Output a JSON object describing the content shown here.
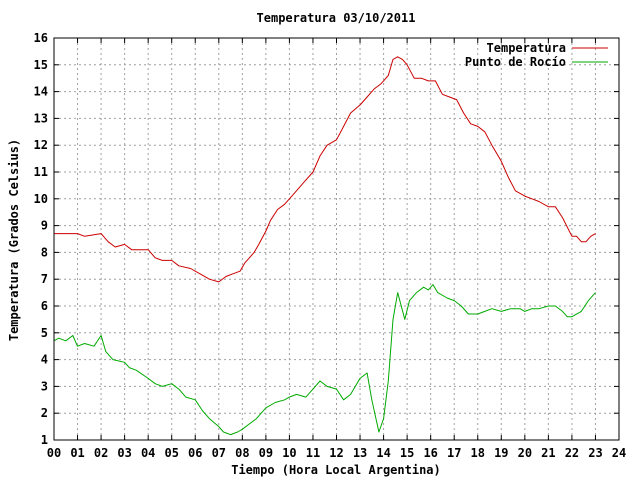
{
  "chart_data": {
    "type": "line",
    "title": "Temperatura 03/10/2011",
    "xlabel": "Tiempo (Hora Local Argentina)",
    "ylabel": "Temperatura (Grados Celsius)",
    "xlim": [
      0,
      24
    ],
    "ylim": [
      1,
      16
    ],
    "x_ticks": [
      "00",
      "01",
      "02",
      "03",
      "04",
      "05",
      "06",
      "07",
      "08",
      "09",
      "10",
      "11",
      "12",
      "13",
      "14",
      "15",
      "16",
      "17",
      "18",
      "19",
      "20",
      "21",
      "22",
      "23",
      "24"
    ],
    "y_ticks": [
      "1",
      "2",
      "3",
      "4",
      "5",
      "6",
      "7",
      "8",
      "9",
      "10",
      "11",
      "12",
      "13",
      "14",
      "15",
      "16"
    ],
    "grid": true,
    "legend_position": "top-right",
    "series": [
      {
        "name": "Temperatura",
        "color": "#cc0000",
        "points": [
          [
            0.0,
            8.7
          ],
          [
            0.5,
            8.7
          ],
          [
            1.0,
            8.7
          ],
          [
            1.3,
            8.6
          ],
          [
            2.0,
            8.7
          ],
          [
            2.3,
            8.4
          ],
          [
            2.6,
            8.2
          ],
          [
            3.0,
            8.3
          ],
          [
            3.3,
            8.1
          ],
          [
            4.0,
            8.1
          ],
          [
            4.3,
            7.8
          ],
          [
            4.6,
            7.7
          ],
          [
            5.0,
            7.7
          ],
          [
            5.3,
            7.5
          ],
          [
            5.8,
            7.4
          ],
          [
            6.2,
            7.2
          ],
          [
            6.6,
            7.0
          ],
          [
            7.0,
            6.9
          ],
          [
            7.3,
            7.1
          ],
          [
            7.6,
            7.2
          ],
          [
            7.9,
            7.3
          ],
          [
            8.1,
            7.6
          ],
          [
            8.3,
            7.8
          ],
          [
            8.5,
            8.0
          ],
          [
            8.7,
            8.3
          ],
          [
            9.0,
            8.8
          ],
          [
            9.2,
            9.2
          ],
          [
            9.5,
            9.6
          ],
          [
            9.8,
            9.8
          ],
          [
            10.0,
            10.0
          ],
          [
            10.3,
            10.3
          ],
          [
            10.6,
            10.6
          ],
          [
            11.0,
            11.0
          ],
          [
            11.3,
            11.6
          ],
          [
            11.6,
            12.0
          ],
          [
            12.0,
            12.2
          ],
          [
            12.3,
            12.7
          ],
          [
            12.6,
            13.2
          ],
          [
            13.0,
            13.5
          ],
          [
            13.3,
            13.8
          ],
          [
            13.6,
            14.1
          ],
          [
            13.9,
            14.3
          ],
          [
            14.2,
            14.6
          ],
          [
            14.4,
            15.2
          ],
          [
            14.6,
            15.3
          ],
          [
            14.8,
            15.2
          ],
          [
            15.0,
            15.0
          ],
          [
            15.3,
            14.5
          ],
          [
            15.6,
            14.5
          ],
          [
            15.9,
            14.4
          ],
          [
            16.2,
            14.4
          ],
          [
            16.5,
            13.9
          ],
          [
            16.8,
            13.8
          ],
          [
            17.1,
            13.7
          ],
          [
            17.4,
            13.2
          ],
          [
            17.7,
            12.8
          ],
          [
            18.0,
            12.7
          ],
          [
            18.3,
            12.5
          ],
          [
            18.6,
            12.0
          ],
          [
            19.0,
            11.4
          ],
          [
            19.3,
            10.8
          ],
          [
            19.6,
            10.3
          ],
          [
            20.0,
            10.1
          ],
          [
            20.3,
            10.0
          ],
          [
            20.6,
            9.9
          ],
          [
            21.0,
            9.7
          ],
          [
            21.3,
            9.7
          ],
          [
            21.6,
            9.3
          ],
          [
            22.0,
            8.6
          ],
          [
            22.2,
            8.6
          ],
          [
            22.4,
            8.4
          ],
          [
            22.6,
            8.4
          ],
          [
            22.8,
            8.6
          ],
          [
            23.0,
            8.7
          ]
        ]
      },
      {
        "name": "Punto de Rocío",
        "color": "#00aa00",
        "points": [
          [
            0.0,
            4.7
          ],
          [
            0.2,
            4.8
          ],
          [
            0.5,
            4.7
          ],
          [
            0.8,
            4.9
          ],
          [
            1.0,
            4.5
          ],
          [
            1.3,
            4.6
          ],
          [
            1.7,
            4.5
          ],
          [
            2.0,
            4.9
          ],
          [
            2.2,
            4.3
          ],
          [
            2.5,
            4.0
          ],
          [
            3.0,
            3.9
          ],
          [
            3.2,
            3.7
          ],
          [
            3.5,
            3.6
          ],
          [
            4.0,
            3.3
          ],
          [
            4.3,
            3.1
          ],
          [
            4.6,
            3.0
          ],
          [
            5.0,
            3.1
          ],
          [
            5.3,
            2.9
          ],
          [
            5.6,
            2.6
          ],
          [
            6.0,
            2.5
          ],
          [
            6.3,
            2.1
          ],
          [
            6.6,
            1.8
          ],
          [
            7.0,
            1.5
          ],
          [
            7.2,
            1.3
          ],
          [
            7.5,
            1.2
          ],
          [
            7.8,
            1.3
          ],
          [
            8.0,
            1.4
          ],
          [
            8.3,
            1.6
          ],
          [
            8.6,
            1.8
          ],
          [
            9.0,
            2.2
          ],
          [
            9.4,
            2.4
          ],
          [
            9.8,
            2.5
          ],
          [
            10.0,
            2.6
          ],
          [
            10.3,
            2.7
          ],
          [
            10.7,
            2.6
          ],
          [
            11.0,
            2.9
          ],
          [
            11.3,
            3.2
          ],
          [
            11.6,
            3.0
          ],
          [
            12.0,
            2.9
          ],
          [
            12.3,
            2.5
          ],
          [
            12.6,
            2.7
          ],
          [
            13.0,
            3.3
          ],
          [
            13.3,
            3.5
          ],
          [
            13.5,
            2.5
          ],
          [
            13.8,
            1.3
          ],
          [
            14.0,
            1.8
          ],
          [
            14.2,
            3.2
          ],
          [
            14.4,
            5.5
          ],
          [
            14.6,
            6.5
          ],
          [
            14.9,
            5.5
          ],
          [
            15.1,
            6.2
          ],
          [
            15.4,
            6.5
          ],
          [
            15.7,
            6.7
          ],
          [
            15.9,
            6.6
          ],
          [
            16.1,
            6.8
          ],
          [
            16.3,
            6.5
          ],
          [
            16.7,
            6.3
          ],
          [
            17.0,
            6.2
          ],
          [
            17.3,
            6.0
          ],
          [
            17.6,
            5.7
          ],
          [
            18.0,
            5.7
          ],
          [
            18.3,
            5.8
          ],
          [
            18.6,
            5.9
          ],
          [
            19.0,
            5.8
          ],
          [
            19.4,
            5.9
          ],
          [
            19.8,
            5.9
          ],
          [
            20.0,
            5.8
          ],
          [
            20.3,
            5.9
          ],
          [
            20.6,
            5.9
          ],
          [
            21.0,
            6.0
          ],
          [
            21.3,
            6.0
          ],
          [
            21.6,
            5.8
          ],
          [
            21.8,
            5.6
          ],
          [
            22.0,
            5.6
          ],
          [
            22.4,
            5.8
          ],
          [
            22.7,
            6.2
          ],
          [
            23.0,
            6.5
          ]
        ]
      }
    ]
  }
}
